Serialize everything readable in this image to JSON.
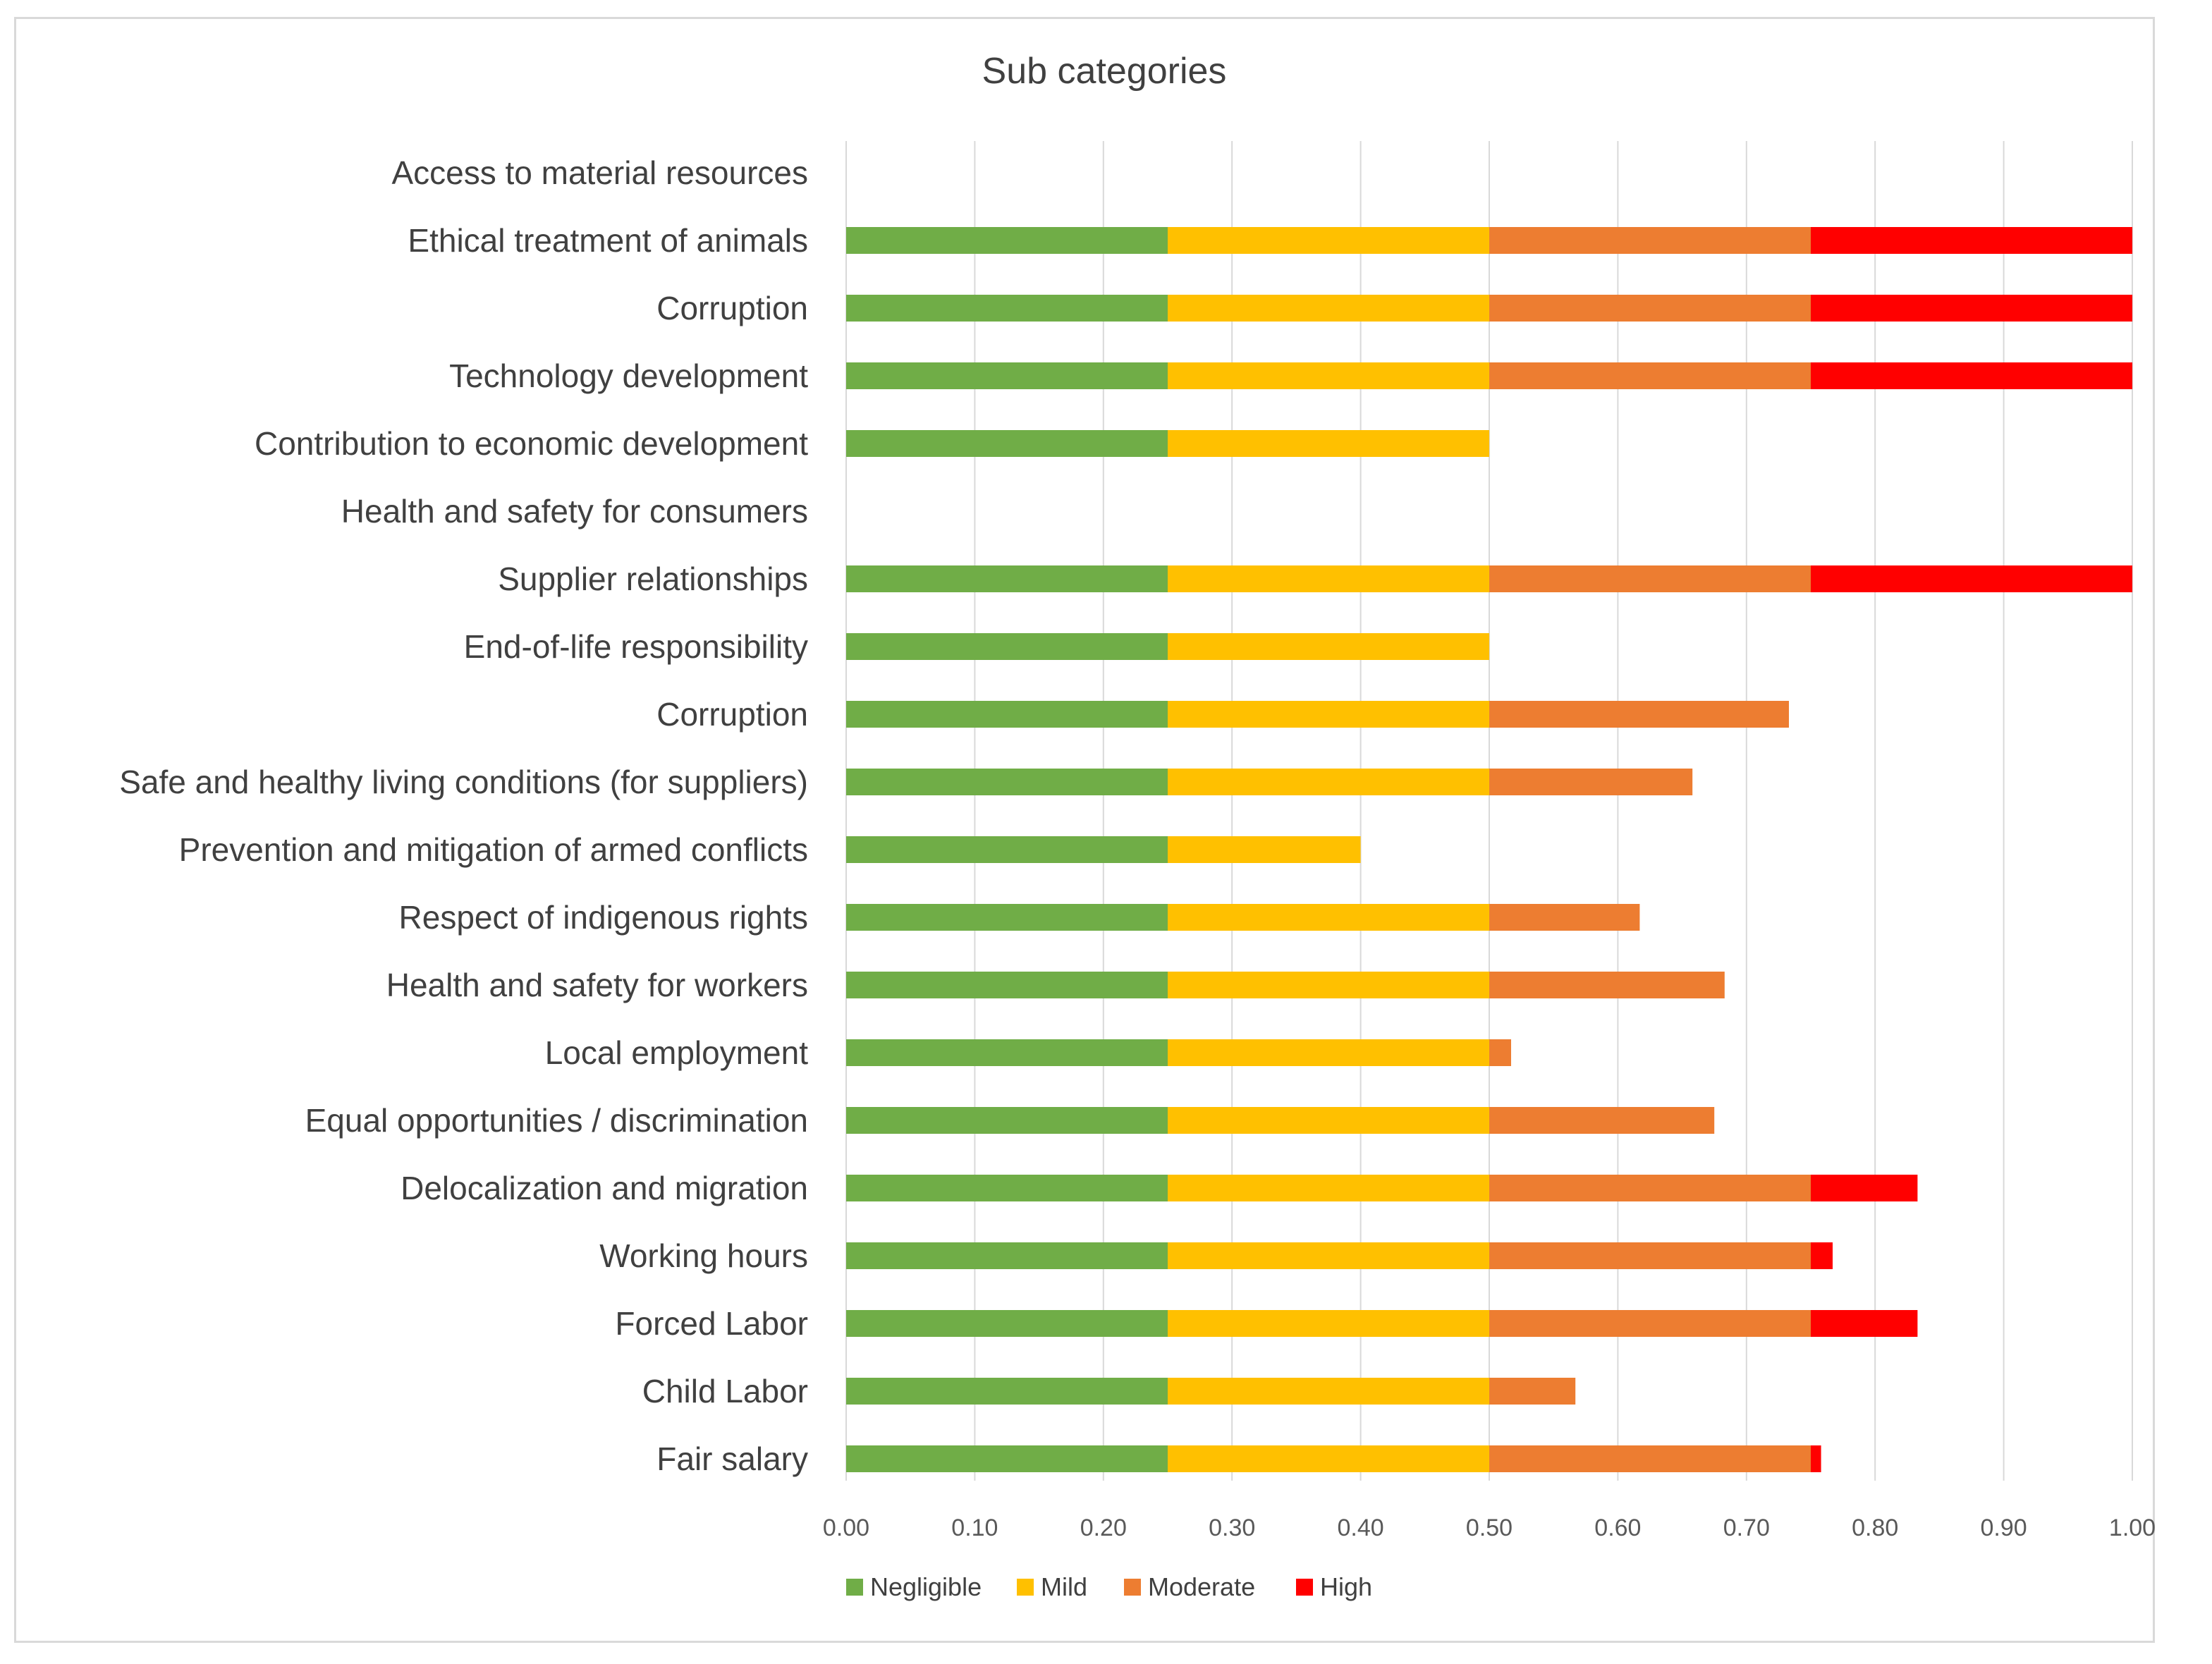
{
  "chart_data": {
    "type": "bar",
    "orientation": "horizontal",
    "stacked": true,
    "title": "Sub categories",
    "xlim": [
      0,
      1
    ],
    "x_ticks": [
      "0.00",
      "0.10",
      "0.20",
      "0.30",
      "0.40",
      "0.50",
      "0.60",
      "0.70",
      "0.80",
      "0.90",
      "1.00"
    ],
    "x_tick_values": [
      0,
      0.1,
      0.2,
      0.3,
      0.4,
      0.5,
      0.6,
      0.7,
      0.8,
      0.9,
      1.0
    ],
    "grid": true,
    "legend_position": "bottom",
    "categories": [
      "Access to material resources",
      "Ethical treatment of animals",
      "Corruption",
      "Technology development",
      "Contribution to economic development",
      "Health and safety for consumers",
      "Supplier relationships",
      "End-of-life responsibility",
      "Corruption",
      "Safe and healthy living conditions (for suppliers)",
      "Prevention and mitigation of armed conflicts",
      "Respect of indigenous rights",
      "Health and safety for workers",
      "Local employment",
      "Equal opportunities / discrimination",
      "Delocalization and migration",
      "Working hours",
      "Forced Labor",
      "Child Labor",
      "Fair salary"
    ],
    "series": [
      {
        "name": "Negligible",
        "color": "#70ad47",
        "values": [
          0,
          0.25,
          0.25,
          0.25,
          0.25,
          0,
          0.25,
          0.25,
          0.25,
          0.25,
          0.25,
          0.25,
          0.25,
          0.25,
          0.25,
          0.25,
          0.25,
          0.25,
          0.25,
          0.25
        ]
      },
      {
        "name": "Mild",
        "color": "#ffc000",
        "values": [
          0,
          0.25,
          0.25,
          0.25,
          0.25,
          0,
          0.25,
          0.25,
          0.25,
          0.25,
          0.15,
          0.25,
          0.25,
          0.25,
          0.25,
          0.25,
          0.25,
          0.25,
          0.25,
          0.25
        ]
      },
      {
        "name": "Moderate",
        "color": "#ed7d31",
        "values": [
          0,
          0.25,
          0.25,
          0.25,
          0,
          0,
          0.25,
          0,
          0.233,
          0.158,
          0,
          0.117,
          0.183,
          0.017,
          0.175,
          0.25,
          0.25,
          0.25,
          0.067,
          0.25
        ]
      },
      {
        "name": "High",
        "color": "#ff0000",
        "values": [
          0,
          0.25,
          0.25,
          0.25,
          0,
          0,
          0.25,
          0,
          0,
          0,
          0,
          0,
          0,
          0,
          0,
          0.083,
          0.017,
          0.083,
          0,
          0.008
        ]
      }
    ]
  }
}
